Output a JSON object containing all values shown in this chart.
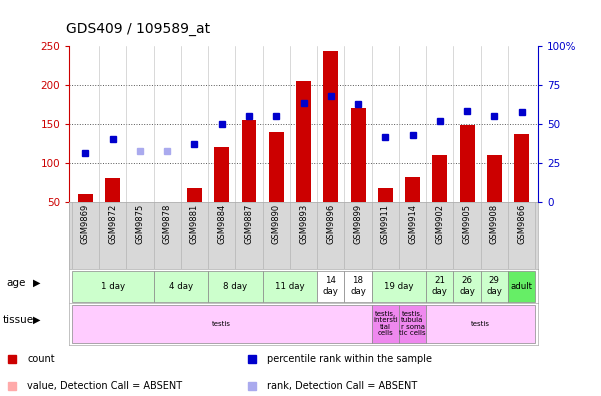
{
  "title": "GDS409 / 109589_at",
  "samples": [
    "GSM9869",
    "GSM9872",
    "GSM9875",
    "GSM9878",
    "GSM9881",
    "GSM9884",
    "GSM9887",
    "GSM9890",
    "GSM9893",
    "GSM9896",
    "GSM9899",
    "GSM9911",
    "GSM9914",
    "GSM9902",
    "GSM9905",
    "GSM9908",
    "GSM9866"
  ],
  "bar_heights": [
    60,
    80,
    50,
    50,
    68,
    120,
    155,
    140,
    205,
    243,
    170,
    68,
    82,
    110,
    148,
    110,
    137
  ],
  "bar_absent": [
    false,
    false,
    true,
    true,
    false,
    false,
    false,
    false,
    false,
    false,
    false,
    false,
    false,
    false,
    false,
    false,
    false
  ],
  "dot_values": [
    113,
    130,
    115,
    115,
    124,
    150,
    160,
    160,
    177,
    185,
    175,
    133,
    136,
    153,
    166,
    160,
    165
  ],
  "dot_absent": [
    false,
    false,
    true,
    true,
    false,
    false,
    false,
    false,
    false,
    false,
    false,
    false,
    false,
    false,
    false,
    false,
    false
  ],
  "ylim_left": [
    50,
    250
  ],
  "ylim_right": [
    0,
    100
  ],
  "yticks_left": [
    50,
    100,
    150,
    200,
    250
  ],
  "yticks_right": [
    0,
    25,
    50,
    75,
    100
  ],
  "age_groups": [
    {
      "label": "1 day",
      "cols": [
        0,
        1,
        2
      ],
      "color": "#ccffcc"
    },
    {
      "label": "4 day",
      "cols": [
        3,
        4
      ],
      "color": "#ccffcc"
    },
    {
      "label": "8 day",
      "cols": [
        5,
        6
      ],
      "color": "#ccffcc"
    },
    {
      "label": "11 day",
      "cols": [
        7,
        8
      ],
      "color": "#ccffcc"
    },
    {
      "label": "14\nday",
      "cols": [
        9
      ],
      "color": "#ffffff"
    },
    {
      "label": "18\nday",
      "cols": [
        10
      ],
      "color": "#ffffff"
    },
    {
      "label": "19 day",
      "cols": [
        11,
        12
      ],
      "color": "#ccffcc"
    },
    {
      "label": "21\nday",
      "cols": [
        13
      ],
      "color": "#ccffcc"
    },
    {
      "label": "26\nday",
      "cols": [
        14
      ],
      "color": "#ccffcc"
    },
    {
      "label": "29\nday",
      "cols": [
        15
      ],
      "color": "#ccffcc"
    },
    {
      "label": "adult",
      "cols": [
        16
      ],
      "color": "#66ee66"
    }
  ],
  "tissue_groups": [
    {
      "label": "testis",
      "cols": [
        0,
        1,
        2,
        3,
        4,
        5,
        6,
        7,
        8,
        9,
        10
      ],
      "color": "#ffccff"
    },
    {
      "label": "testis,\nintersti\ntial\ncells",
      "cols": [
        11
      ],
      "color": "#ee88ee"
    },
    {
      "label": "testis,\ntubula\nr soma\ntic cells",
      "cols": [
        12
      ],
      "color": "#ee88ee"
    },
    {
      "label": "testis",
      "cols": [
        13,
        14,
        15,
        16
      ],
      "color": "#ffccff"
    }
  ],
  "bar_color": "#cc0000",
  "bar_absent_color": "#ffaaaa",
  "dot_color": "#0000cc",
  "dot_absent_color": "#aaaaee",
  "legend_items": [
    {
      "label": "count",
      "color": "#cc0000"
    },
    {
      "label": "percentile rank within the sample",
      "color": "#0000cc"
    },
    {
      "label": "value, Detection Call = ABSENT",
      "color": "#ffaaaa"
    },
    {
      "label": "rank, Detection Call = ABSENT",
      "color": "#aaaaee"
    }
  ],
  "left_axis_color": "#cc0000",
  "right_axis_color": "#0000cc",
  "hgrid_lines": [
    100,
    150,
    200
  ]
}
